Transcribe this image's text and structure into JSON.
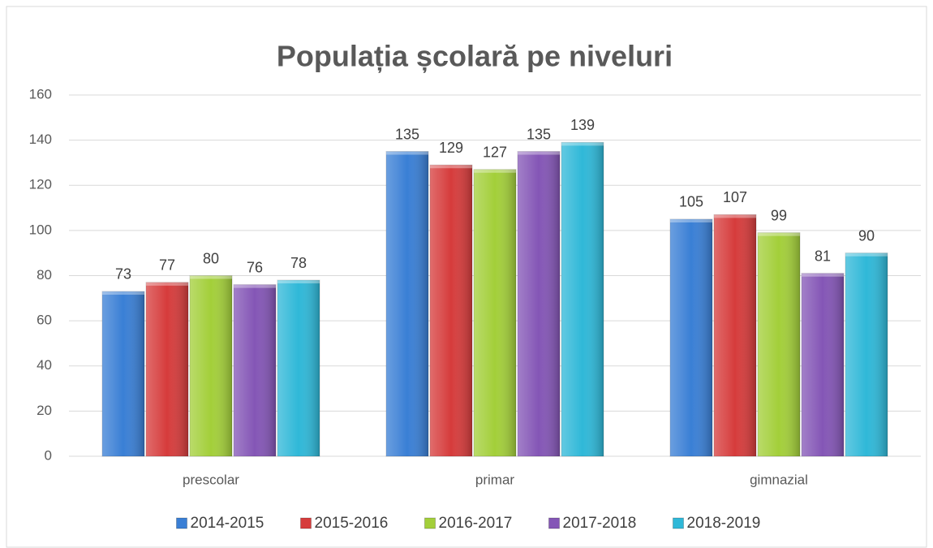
{
  "chart_data": {
    "type": "bar",
    "title": "Populația școlară pe niveluri",
    "categories": [
      "prescolar",
      "primar",
      "gimnazial"
    ],
    "series": [
      {
        "name": "2014-2015",
        "color": "#3a7fd5",
        "values": [
          73,
          135,
          105
        ]
      },
      {
        "name": "2015-2016",
        "color": "#d63c3c",
        "values": [
          77,
          129,
          107
        ]
      },
      {
        "name": "2016-2017",
        "color": "#a3cf3a",
        "values": [
          80,
          127,
          99
        ]
      },
      {
        "name": "2017-2018",
        "color": "#8456b6",
        "values": [
          76,
          135,
          81
        ]
      },
      {
        "name": "2018-2019",
        "color": "#2fb8d8",
        "values": [
          78,
          139,
          90
        ]
      }
    ],
    "ylim": [
      0,
      160
    ],
    "yticks": [
      0,
      20,
      40,
      60,
      80,
      100,
      120,
      140,
      160
    ],
    "grid": true,
    "legend": "bottom"
  }
}
